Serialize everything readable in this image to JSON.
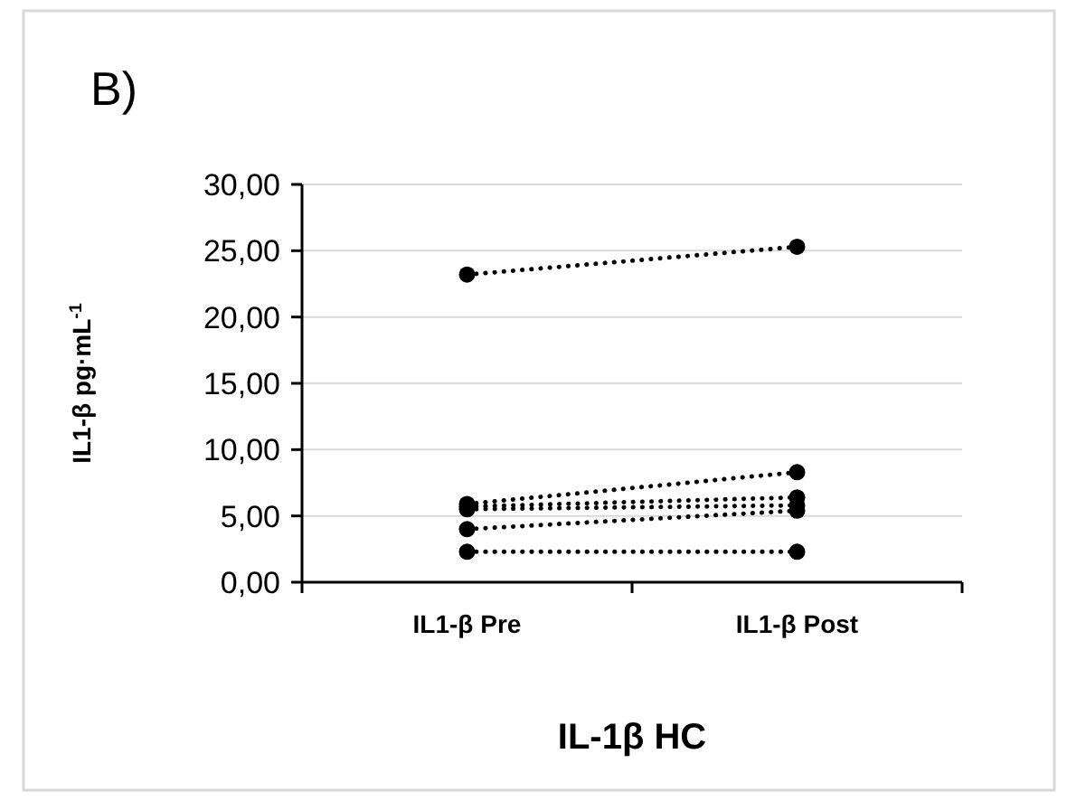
{
  "chart_data": {
    "type": "line",
    "title": "IL-1β HC",
    "ylabel": "IL1-β pg·mL$^{-1}$",
    "annotations": [
      "B)"
    ],
    "categories": [
      "IL1-β Pre",
      "IL1-β Post"
    ],
    "series": [
      {
        "color": "#000000",
        "values": [
          23.2,
          25.3
        ]
      },
      {
        "color": "#000000",
        "values": [
          5.9,
          8.3
        ]
      },
      {
        "color": "#000000",
        "values": [
          5.7,
          6.4
        ]
      },
      {
        "color": "#000000",
        "values": [
          5.5,
          5.8
        ]
      },
      {
        "color": "#000000",
        "values": [
          4.0,
          5.4
        ]
      },
      {
        "color": "#000000",
        "values": [
          2.3,
          2.3
        ]
      }
    ],
    "ylim": [
      0,
      30
    ],
    "yticks": [
      {
        "value": 0,
        "label": "0,00"
      },
      {
        "value": 5,
        "label": "5,00"
      },
      {
        "value": 10,
        "label": "10,00"
      },
      {
        "value": 15,
        "label": "15,00"
      },
      {
        "value": 20,
        "label": "20,00"
      },
      {
        "value": 25,
        "label": "25,00"
      },
      {
        "value": 30,
        "label": "30,00"
      }
    ],
    "grid": "y",
    "marker": "circle",
    "line_style": "dotted"
  }
}
